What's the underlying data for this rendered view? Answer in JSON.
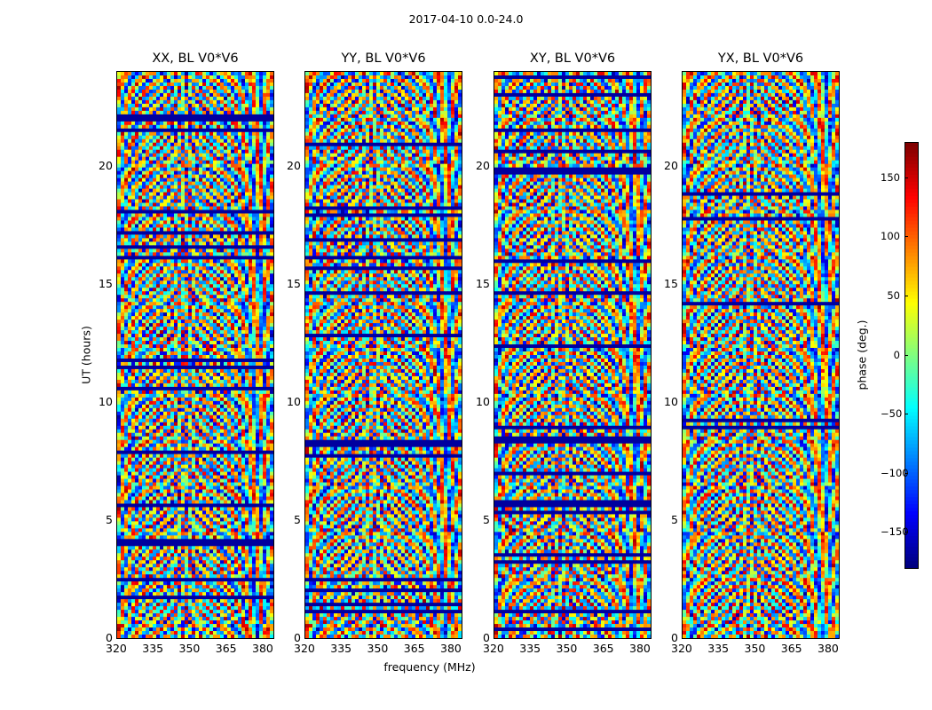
{
  "figure": {
    "suptitle": "2017-04-10 0.0-24.0"
  },
  "chart_data": [
    {
      "type": "heatmap",
      "title": "XX, BL V0*V6",
      "xlabel": "frequency (MHz)",
      "ylabel": "UT (hours)",
      "xlim": [
        320,
        384
      ],
      "ylim": [
        0,
        24
      ],
      "xticks": [
        320,
        335,
        350,
        365,
        380
      ],
      "yticks": [
        0,
        5,
        10,
        15,
        20
      ],
      "colorbar": {
        "label": "phase (deg.)",
        "range": [
          -180,
          180
        ],
        "ticks": [
          -150,
          -100,
          -50,
          0,
          50,
          100,
          150
        ],
        "colormap": "jet"
      }
    },
    {
      "type": "heatmap",
      "title": "YY, BL V0*V6",
      "xlabel": "frequency (MHz)",
      "xlim": [
        320,
        384
      ],
      "ylim": [
        0,
        24
      ],
      "xticks": [
        320,
        335,
        350,
        365,
        380
      ],
      "yticks": [
        0,
        5,
        10,
        15,
        20
      ],
      "colorbar": {
        "label": "phase (deg.)",
        "range": [
          -180,
          180
        ],
        "ticks": [
          -150,
          -100,
          -50,
          0,
          50,
          100,
          150
        ],
        "colormap": "jet"
      }
    },
    {
      "type": "heatmap",
      "title": "XY, BL V0*V6",
      "xlabel": "frequency (MHz)",
      "xlim": [
        320,
        384
      ],
      "ylim": [
        0,
        24
      ],
      "xticks": [
        320,
        335,
        350,
        365,
        380
      ],
      "yticks": [
        0,
        5,
        10,
        15,
        20
      ],
      "colorbar": {
        "label": "phase (deg.)",
        "range": [
          -180,
          180
        ],
        "ticks": [
          -150,
          -100,
          -50,
          0,
          50,
          100,
          150
        ],
        "colormap": "jet"
      }
    },
    {
      "type": "heatmap",
      "title": "YX, BL V0*V6",
      "xlabel": "frequency (MHz)",
      "xlim": [
        320,
        384
      ],
      "ylim": [
        0,
        24
      ],
      "xticks": [
        320,
        335,
        350,
        365,
        380
      ],
      "yticks": [
        0,
        5,
        10,
        15,
        20
      ],
      "colorbar": {
        "label": "phase (deg.)",
        "range": [
          -180,
          180
        ],
        "ticks": [
          -150,
          -100,
          -50,
          0,
          50,
          100,
          150
        ],
        "colormap": "jet"
      }
    }
  ],
  "shared": {
    "xlabel": "frequency (MHz)",
    "ylabel": "UT (hours)",
    "colorbar_label": "phase (deg.)"
  }
}
